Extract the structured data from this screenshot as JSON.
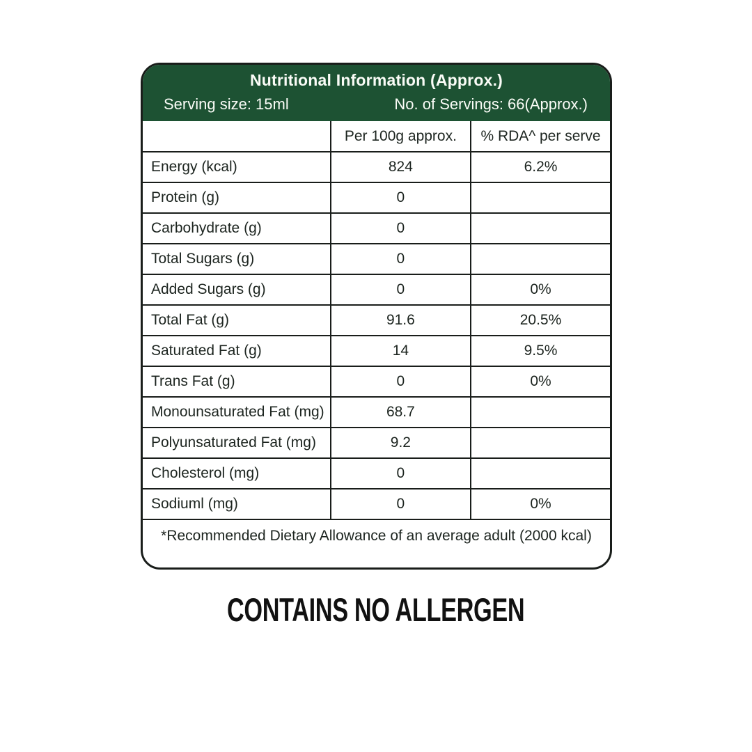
{
  "card": {
    "header": {
      "title": "Nutritional Information (Approx.)",
      "serving_size": "Serving size: 15ml",
      "servings": "No. of Servings: 66(Approx.)",
      "bg_color": "#1d5233",
      "text_color": "#fafcf7"
    },
    "columns": {
      "nutrient": "",
      "per100": "Per 100g approx.",
      "rda": "% RDA^ per serve"
    },
    "rows": [
      {
        "label": "Energy (kcal)",
        "per100": "824",
        "rda": "6.2%"
      },
      {
        "label": "Protein (g)",
        "per100": "0",
        "rda": ""
      },
      {
        "label": "Carbohydrate (g)",
        "per100": "0",
        "rda": ""
      },
      {
        "label": "Total Sugars (g)",
        "per100": "0",
        "rda": ""
      },
      {
        "label": "Added Sugars (g)",
        "per100": "0",
        "rda": "0%"
      },
      {
        "label": "Total Fat (g)",
        "per100": "91.6",
        "rda": "20.5%"
      },
      {
        "label": "Saturated Fat (g)",
        "per100": "14",
        "rda": "9.5%"
      },
      {
        "label": "Trans Fat (g)",
        "per100": "0",
        "rda": "0%"
      },
      {
        "label": "Monounsaturated Fat (mg)",
        "per100": "68.7",
        "rda": ""
      },
      {
        "label": "Polyunsaturated Fat (mg)",
        "per100": "9.2",
        "rda": ""
      },
      {
        "label": "Cholesterol (mg)",
        "per100": "0",
        "rda": ""
      },
      {
        "label": "Sodiuml (mg)",
        "per100": "0",
        "rda": "0%"
      }
    ],
    "footnote": "*Recommended Dietary Allowance of an average adult (2000 kcal)",
    "border_color": "#191d1a"
  },
  "allergen_note": "CONTAINS NO ALLERGEN"
}
